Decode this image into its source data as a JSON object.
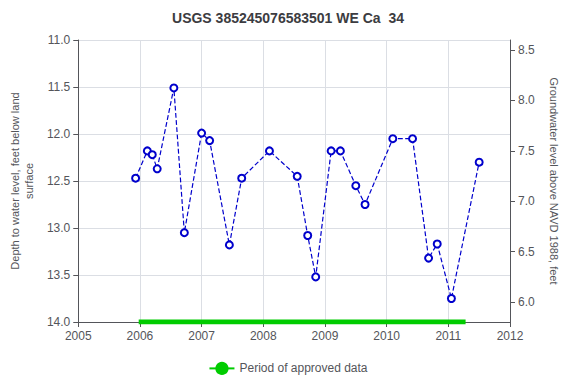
{
  "chart_data": {
    "type": "line",
    "title": "USGS 385245076583501 WE Ca  34",
    "ylabel": "Depth to water level, feet below land\nsurface",
    "y2label": "Groundwater level above NAVD 1988, feet",
    "xlim": [
      2005,
      2012
    ],
    "xticks": [
      2005,
      2006,
      2007,
      2008,
      2009,
      2010,
      2011,
      2012
    ],
    "ylim": [
      14.0,
      11.0
    ],
    "yticks": [
      {
        "value": 11.0,
        "label": "11.0"
      },
      {
        "value": 11.5,
        "label": "11.5"
      },
      {
        "value": 12.0,
        "label": "12.0"
      },
      {
        "value": 12.5,
        "label": "12.5"
      },
      {
        "value": 13.0,
        "label": "13.0"
      },
      {
        "value": 13.5,
        "label": "13.5"
      },
      {
        "value": 14.0,
        "label": "14.0"
      }
    ],
    "y2lim": [
      5.8,
      8.6
    ],
    "y2ticks": [
      {
        "value": 6.0,
        "label": "6.0"
      },
      {
        "value": 6.5,
        "label": "6.5"
      },
      {
        "value": 7.0,
        "label": "7.0"
      },
      {
        "value": 7.5,
        "label": "7.5"
      },
      {
        "value": 8.0,
        "label": "8.0"
      },
      {
        "value": 8.5,
        "label": "8.5"
      }
    ],
    "grid": true,
    "legend": "bottom",
    "series": [
      {
        "color": "#0000CC",
        "marker": "circle",
        "line_style": "dashed",
        "x": [
          2005.93,
          2006.12,
          2006.2,
          2006.28,
          2006.55,
          2006.72,
          2007.0,
          2007.13,
          2007.45,
          2007.65,
          2008.1,
          2008.55,
          2008.72,
          2008.85,
          2009.1,
          2009.25,
          2009.5,
          2009.65,
          2010.1,
          2010.42,
          2010.68,
          2010.82,
          2011.05,
          2011.5
        ],
        "values": [
          12.47,
          12.18,
          12.22,
          12.37,
          11.51,
          13.05,
          11.99,
          12.07,
          13.18,
          12.47,
          12.18,
          12.45,
          13.08,
          13.52,
          12.18,
          12.18,
          12.55,
          12.75,
          12.05,
          12.05,
          13.32,
          13.17,
          13.75,
          12.3
        ]
      },
      {
        "name": "Period of approved data",
        "color": "#00CC00",
        "line_style": "solid",
        "x": [
          2005.98,
          2011.28
        ],
        "values": [
          14.0,
          14.0
        ]
      }
    ]
  }
}
